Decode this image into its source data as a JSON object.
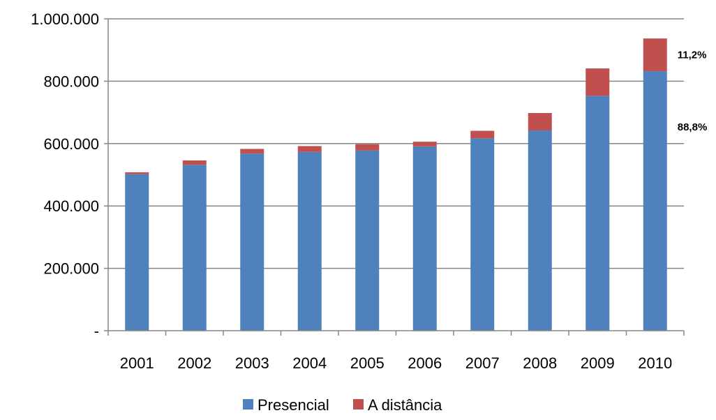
{
  "chart_data": {
    "type": "bar",
    "stacked": true,
    "categories": [
      "2001",
      "2002",
      "2003",
      "2004",
      "2005",
      "2006",
      "2007",
      "2008",
      "2009",
      "2010"
    ],
    "series": [
      {
        "name": "Presencial",
        "color": "#4F81BD",
        "values": [
          502000,
          532000,
          568000,
          573000,
          578000,
          591000,
          617000,
          642000,
          753000,
          832000
        ]
      },
      {
        "name": "A distância",
        "color": "#C0504D",
        "values": [
          6000,
          14000,
          15000,
          19000,
          20000,
          15000,
          24000,
          56000,
          88000,
          105000
        ]
      }
    ],
    "ylim": [
      0,
      1000000
    ],
    "yticks": [
      0,
      200000,
      400000,
      600000,
      800000,
      1000000
    ],
    "ytick_labels": [
      "-",
      "200.000",
      "400.000",
      "600.000",
      "800.000",
      "1.000.000"
    ],
    "grid": true,
    "legend_position": "bottom",
    "annotations": [
      {
        "text": "11,2%",
        "category": "2010",
        "series": "A distância"
      },
      {
        "text": "88,8%",
        "category": "2010",
        "series": "Presencial"
      }
    ]
  }
}
